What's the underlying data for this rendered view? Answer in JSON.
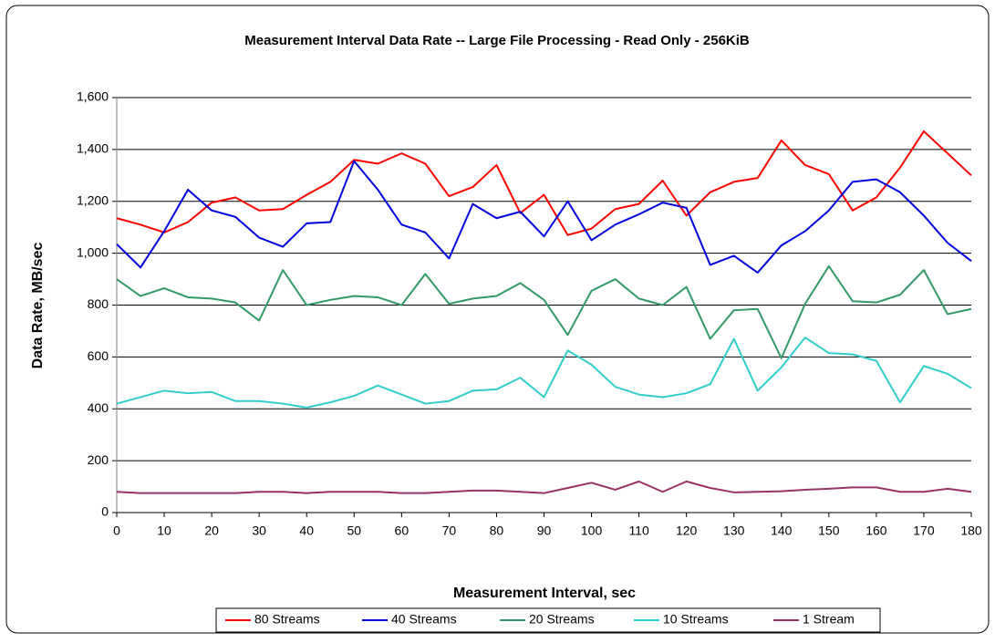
{
  "chart_data": {
    "type": "line",
    "title": "Measurement Interval Data Rate -- Large File Processing - Read Only - 256KiB",
    "x_label": "Measurement Interval, sec",
    "y_label": "Data Rate, MB/sec",
    "x": [
      0,
      5,
      10,
      15,
      20,
      25,
      30,
      35,
      40,
      45,
      50,
      55,
      60,
      65,
      70,
      75,
      80,
      85,
      90,
      95,
      100,
      105,
      110,
      115,
      120,
      125,
      130,
      135,
      140,
      145,
      150,
      155,
      160,
      165,
      170,
      175,
      180
    ],
    "xlim": [
      0,
      180
    ],
    "xticks": [
      0,
      10,
      20,
      30,
      40,
      50,
      60,
      70,
      80,
      90,
      100,
      110,
      120,
      130,
      140,
      150,
      160,
      170,
      180
    ],
    "ylim": [
      0,
      1600
    ],
    "yticks": [
      0,
      200,
      400,
      600,
      800,
      {
        "value": 1000,
        "label": "1,000"
      },
      {
        "value": 1200,
        "label": "1,200"
      },
      {
        "value": 1400,
        "label": "1,400"
      },
      {
        "value": 1600,
        "label": "1,600"
      }
    ],
    "grid": true,
    "legend": "bottom",
    "series": [
      {
        "name": "80 Streams",
        "color": "#ff0000",
        "values": [
          1135,
          1110,
          1080,
          1120,
          1195,
          1215,
          1165,
          1170,
          1225,
          1275,
          1360,
          1345,
          1385,
          1345,
          1220,
          1255,
          1340,
          1155,
          1225,
          1070,
          1095,
          1170,
          1190,
          1280,
          1145,
          1235,
          1275,
          1290,
          1435,
          1340,
          1305,
          1165,
          1215,
          1330,
          1470,
          1385,
          1300
        ]
      },
      {
        "name": "40 Streams",
        "color": "#0000dd",
        "values": [
          1035,
          945,
          1085,
          1245,
          1165,
          1140,
          1060,
          1025,
          1115,
          1120,
          1355,
          1245,
          1110,
          1080,
          980,
          1190,
          1135,
          1160,
          1065,
          1200,
          1050,
          1110,
          1150,
          1195,
          1175,
          955,
          990,
          925,
          1030,
          1085,
          1165,
          1275,
          1285,
          1235,
          1145,
          1040,
          970
        ]
      },
      {
        "name": "20 Streams",
        "color": "#339966",
        "values": [
          900,
          835,
          865,
          830,
          825,
          810,
          740,
          935,
          800,
          820,
          835,
          830,
          800,
          920,
          805,
          825,
          835,
          885,
          820,
          685,
          855,
          900,
          825,
          800,
          870,
          670,
          780,
          785,
          595,
          805,
          950,
          815,
          810,
          840,
          935,
          765,
          785
        ]
      },
      {
        "name": "10 Streams",
        "color": "#33cccc",
        "values": [
          420,
          445,
          470,
          460,
          465,
          430,
          430,
          420,
          405,
          425,
          450,
          490,
          455,
          420,
          430,
          470,
          475,
          520,
          445,
          625,
          570,
          485,
          455,
          445,
          460,
          495,
          670,
          470,
          560,
          675,
          615,
          610,
          585,
          425,
          565,
          535,
          480
        ]
      },
      {
        "name": "1 Stream",
        "color": "#993366",
        "values": [
          80,
          75,
          75,
          75,
          75,
          75,
          80,
          80,
          75,
          80,
          80,
          80,
          75,
          75,
          80,
          85,
          85,
          80,
          75,
          95,
          115,
          88,
          120,
          80,
          120,
          95,
          78,
          80,
          82,
          88,
          92,
          97,
          97,
          80,
          80,
          92,
          80
        ]
      }
    ]
  }
}
